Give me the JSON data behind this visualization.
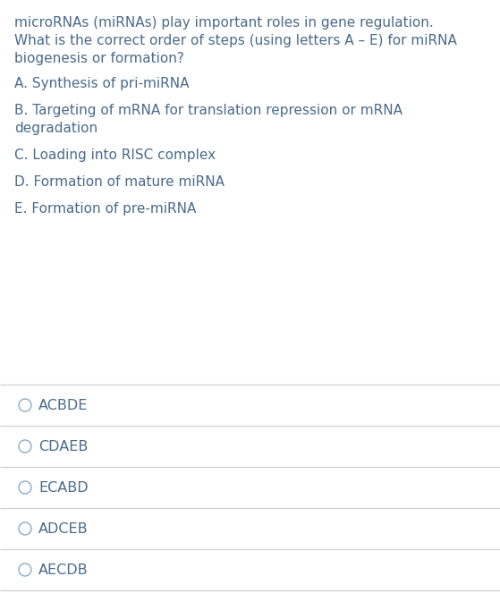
{
  "bg_color": "#ffffff",
  "text_color": "#4a6b8a",
  "question_color": "#4a6b8a",
  "question_lines": [
    "microRNAs (miRNAs) play important roles in gene regulation.",
    "What is the correct order of steps (using letters A – E) for miRNA",
    "biogenesis or formation?"
  ],
  "options_display": [
    [
      "A. Synthesis of pri-miRNA"
    ],
    [
      "B. Targeting of mRNA for translation repression or mRNA",
      "degradation"
    ],
    [
      "C. Loading into RISC complex"
    ],
    [
      "D. Formation of mature miRNA"
    ],
    [
      "E. Formation of pre-miRNA"
    ]
  ],
  "answers": [
    "ACBDE",
    "CDAEB",
    "ECABD",
    "ADCEB",
    "AECDB"
  ],
  "divider_color": "#d0d0d0",
  "circle_color": "#8aacc8",
  "font_size": 11.0,
  "answer_font_size": 11.5
}
